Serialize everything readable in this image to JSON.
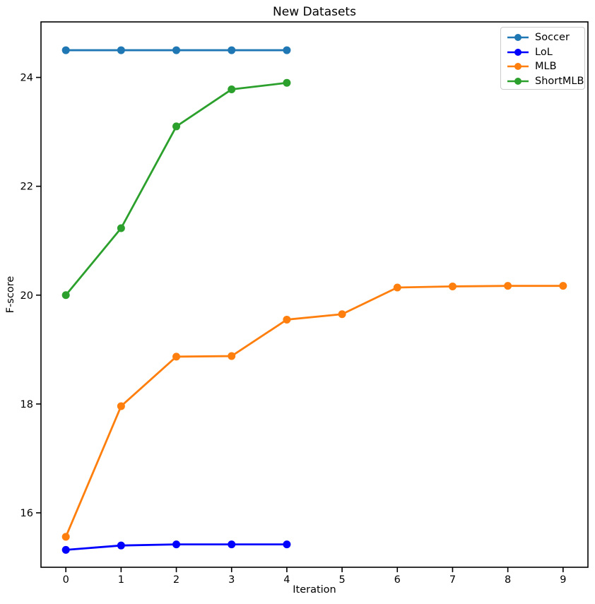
{
  "chart_data": {
    "type": "line",
    "title": "New Datasets",
    "xlabel": "Iteration",
    "ylabel": "F-score",
    "xlim": [
      -0.45,
      9.45
    ],
    "ylim": [
      15.0,
      25.02
    ],
    "xticks": [
      0,
      1,
      2,
      3,
      4,
      5,
      6,
      7,
      8,
      9
    ],
    "yticks": [
      16,
      18,
      20,
      22,
      24
    ],
    "grid": false,
    "legend_position": "upper right",
    "marker": "circle",
    "background_color": "#ffffff",
    "axis_color": "#000000",
    "series": [
      {
        "name": "Soccer",
        "color": "#1f77b4",
        "x": [
          0,
          1,
          2,
          3,
          4
        ],
        "y": [
          24.5,
          24.5,
          24.5,
          24.5,
          24.5
        ]
      },
      {
        "name": "LoL",
        "color": "#0000ff",
        "x": [
          0,
          1,
          2,
          3,
          4
        ],
        "y": [
          15.32,
          15.4,
          15.42,
          15.42,
          15.42
        ]
      },
      {
        "name": "MLB",
        "color": "#ff7f0e",
        "x": [
          0,
          1,
          2,
          3,
          4,
          5,
          6,
          7,
          8,
          9
        ],
        "y": [
          15.56,
          17.96,
          18.87,
          18.88,
          19.55,
          19.65,
          20.14,
          20.16,
          20.17,
          20.17
        ]
      },
      {
        "name": "ShortMLB",
        "color": "#2ca02c",
        "x": [
          0,
          1,
          2,
          3,
          4
        ],
        "y": [
          20.0,
          21.23,
          23.1,
          23.78,
          23.9
        ]
      }
    ]
  }
}
